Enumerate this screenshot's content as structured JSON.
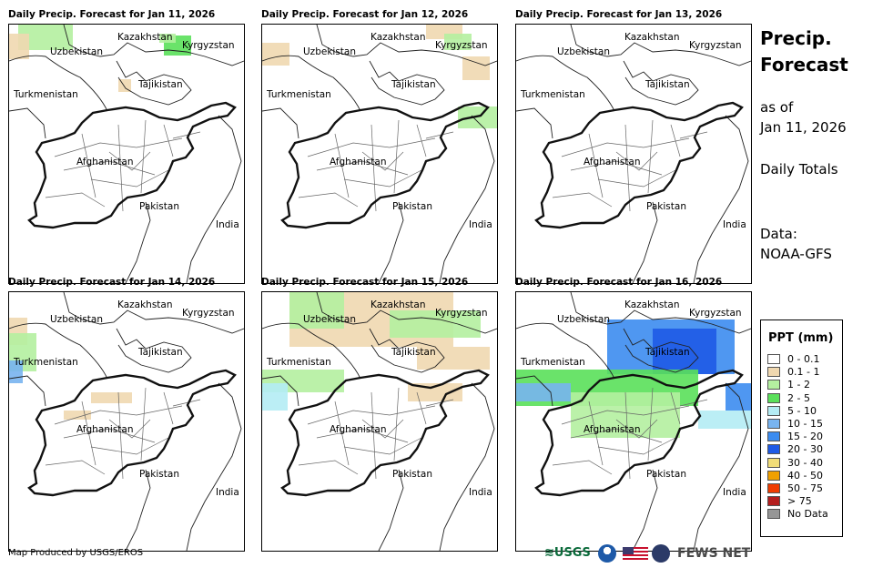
{
  "panels": [
    {
      "title": "Daily Precip. Forecast for Jan 11, 2026"
    },
    {
      "title": "Daily Precip. Forecast for Jan 12, 2026"
    },
    {
      "title": "Daily Precip. Forecast for Jan 13, 2026"
    },
    {
      "title": "Daily Precip. Forecast for Jan 14, 2026"
    },
    {
      "title": "Daily Precip. Forecast for Jan 15, 2026"
    },
    {
      "title": "Daily Precip. Forecast for Jan 16, 2026"
    }
  ],
  "countries": {
    "kazakhstan": "Kazakhstan",
    "kyrgyzstan": "Kyrgyzstan",
    "uzbekistan": "Uzbekistan",
    "tajikistan": "Tajikistan",
    "turkmenistan": "Turkmenistan",
    "afghanistan": "Afghanistan",
    "pakistan": "Pakistan",
    "india": "India"
  },
  "sidebar": {
    "title_line1": "Precip.",
    "title_line2": "Forecast",
    "as_of_label": "as of",
    "as_of_date": "Jan 11, 2026",
    "totals_label": "Daily Totals",
    "data_label": "Data:",
    "data_source": "NOAA-GFS"
  },
  "legend": {
    "title": "PPT (mm)",
    "items": [
      {
        "label": "0 - 0.1",
        "color": "#ffffff"
      },
      {
        "label": "0.1 - 1",
        "color": "#f0d8b0"
      },
      {
        "label": "1 - 2",
        "color": "#b4f0a0"
      },
      {
        "label": "2 - 5",
        "color": "#5ae05a"
      },
      {
        "label": "5 - 10",
        "color": "#b4ecf4"
      },
      {
        "label": "10 - 15",
        "color": "#78b4f0"
      },
      {
        "label": "15 - 20",
        "color": "#3c8cf0"
      },
      {
        "label": "20 - 30",
        "color": "#1e5ae6"
      },
      {
        "label": "30 - 40",
        "color": "#f0dc78"
      },
      {
        "label": "40 - 50",
        "color": "#f0a000"
      },
      {
        "label": "50 - 75",
        "color": "#f03c00"
      },
      {
        "label": "> 75",
        "color": "#b41e1e"
      },
      {
        "label": "No Data",
        "color": "#969696"
      }
    ]
  },
  "footer": {
    "credit": "Map Produced by USGS/EROS",
    "usgs_text": "≋USGS",
    "fewsnet_text": "FEWS NET"
  }
}
